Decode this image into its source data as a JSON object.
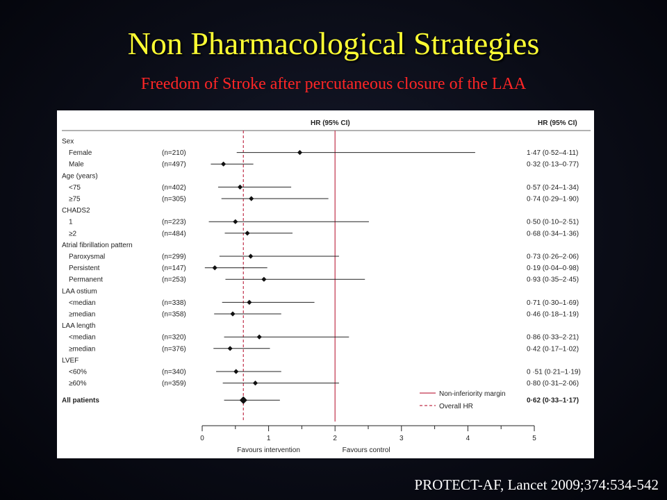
{
  "slide": {
    "title": "Non Pharmacological Strategies",
    "subtitle": "Freedom of Stroke after percutaneous closure of the LAA",
    "citation": "PROTECT-AF, Lancet 2009;374:534-542"
  },
  "colors": {
    "title": "#ffff33",
    "subtitle": "#ff2626",
    "margin_line": "#c0304a",
    "overall_line": "#c0304a"
  },
  "chart_data": {
    "type": "forest",
    "header_center": "HR (95% CI)",
    "header_right": "HR (95% CI)",
    "xlim": [
      0,
      5
    ],
    "xticks": [
      "0",
      "1",
      "2",
      "3",
      "4",
      "5"
    ],
    "xlabel_left": "Favours intervention",
    "xlabel_right": "Favours control",
    "non_inferiority_margin": 2,
    "overall_hr": 0.62,
    "legend": [
      "Non-inferiority margin",
      "Overall HR"
    ],
    "rows": [
      {
        "label": "Sex",
        "type": "group"
      },
      {
        "label": "Female",
        "n": "(n=210)",
        "hr": 1.47,
        "lo": 0.52,
        "hi": 4.11,
        "ci": "1·47 (0·52–4·11)"
      },
      {
        "label": "Male",
        "n": "(n=497)",
        "hr": 0.32,
        "lo": 0.13,
        "hi": 0.77,
        "ci": "0·32 (0·13–0·77)"
      },
      {
        "label": "Age (years)",
        "type": "group"
      },
      {
        "label": "<75",
        "n": "(n=402)",
        "hr": 0.57,
        "lo": 0.24,
        "hi": 1.34,
        "ci": "0·57 (0·24–1·34)"
      },
      {
        "label": "≥75",
        "n": "(n=305)",
        "hr": 0.74,
        "lo": 0.29,
        "hi": 1.9,
        "ci": "0·74 (0·29–1·90)"
      },
      {
        "label": "CHADS2",
        "type": "group"
      },
      {
        "label": "1",
        "n": "(n=223)",
        "hr": 0.5,
        "lo": 0.1,
        "hi": 2.51,
        "ci": "0·50 (0·10–2·51)"
      },
      {
        "label": "≥2",
        "n": "(n=484)",
        "hr": 0.68,
        "lo": 0.34,
        "hi": 1.36,
        "ci": "0·68 (0·34–1·36)"
      },
      {
        "label": "Atrial fibrillation pattern",
        "type": "group"
      },
      {
        "label": "Paroxysmal",
        "n": "(n=299)",
        "hr": 0.73,
        "lo": 0.26,
        "hi": 2.06,
        "ci": "0·73 (0·26–2·06)"
      },
      {
        "label": "Persistent",
        "n": "(n=147)",
        "hr": 0.19,
        "lo": 0.04,
        "hi": 0.98,
        "ci": "0·19 (0·04–0·98)"
      },
      {
        "label": "Permanent",
        "n": "(n=253)",
        "hr": 0.93,
        "lo": 0.35,
        "hi": 2.45,
        "ci": "0·93 (0·35–2·45)"
      },
      {
        "label": "LAA ostium",
        "type": "group"
      },
      {
        "label": "<median",
        "n": "(n=338)",
        "hr": 0.71,
        "lo": 0.3,
        "hi": 1.69,
        "ci": "0·71 (0·30–1·69)"
      },
      {
        "label": "≥median",
        "n": "(n=358)",
        "hr": 0.46,
        "lo": 0.18,
        "hi": 1.19,
        "ci": "0·46 (0·18–1·19)"
      },
      {
        "label": "LAA length",
        "type": "group"
      },
      {
        "label": "<median",
        "n": "(n=320)",
        "hr": 0.86,
        "lo": 0.33,
        "hi": 2.21,
        "ci": "0·86 (0·33–2·21)"
      },
      {
        "label": "≥median",
        "n": "(n=376)",
        "hr": 0.42,
        "lo": 0.17,
        "hi": 1.02,
        "ci": "0·42 (0·17–1·02)"
      },
      {
        "label": "LVEF",
        "type": "group"
      },
      {
        "label": "<60%",
        "n": "(n=340)",
        "hr": 0.51,
        "lo": 0.21,
        "hi": 1.19,
        "ci": "0 ·51 (0·21–1·19)"
      },
      {
        "label": "≥60%",
        "n": "(n=359)",
        "hr": 0.8,
        "lo": 0.31,
        "hi": 2.06,
        "ci": "0·80 (0·31–2·06)"
      },
      {
        "label": "All patients",
        "type": "overall",
        "hr": 0.62,
        "lo": 0.33,
        "hi": 1.17,
        "ci": "0·62 (0·33–1·17)"
      }
    ]
  }
}
